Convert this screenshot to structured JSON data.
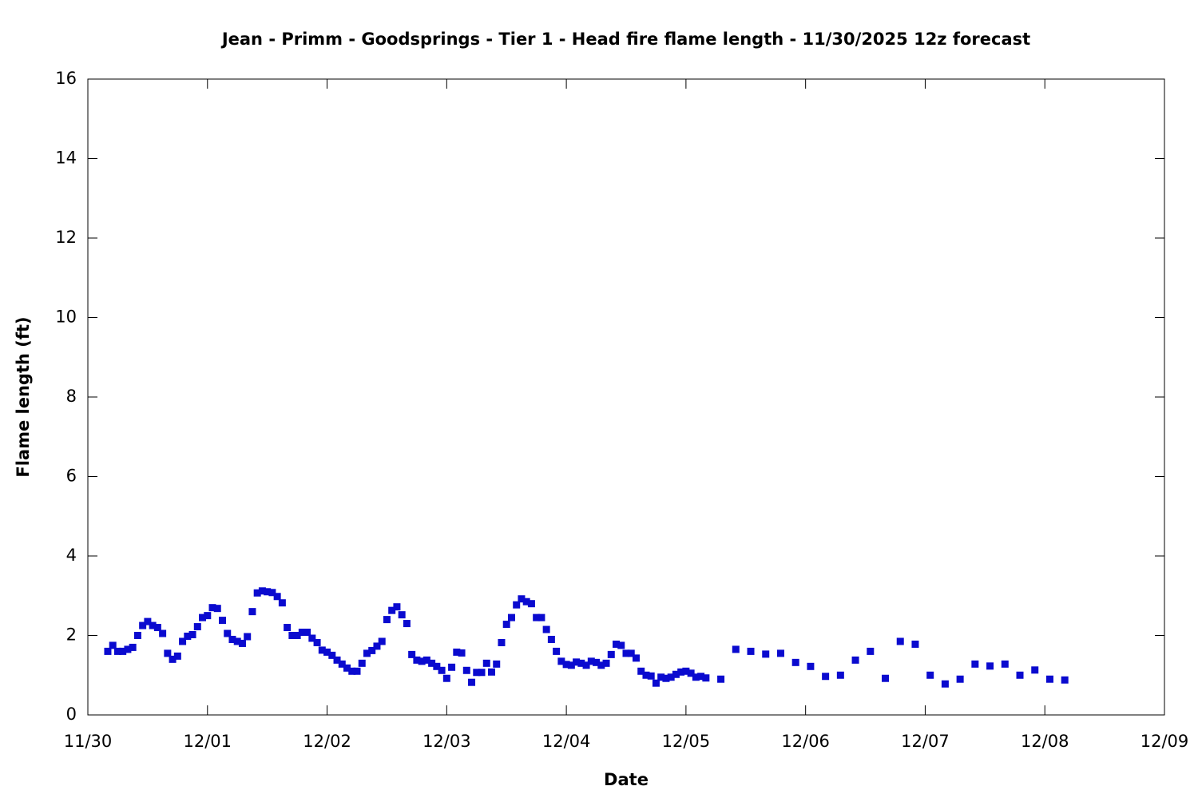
{
  "chart_data": {
    "type": "scatter",
    "title": "Jean - Primm - Goodsprings - Tier 1 - Head fire flame length - 11/30/2025 12z forecast",
    "xlabel": "Date",
    "ylabel": "Flame length (ft)",
    "xlim": [
      0,
      216
    ],
    "ylim": [
      0,
      16
    ],
    "xticks": [
      {
        "value": 0,
        "label": "11/30"
      },
      {
        "value": 24,
        "label": "12/01"
      },
      {
        "value": 48,
        "label": "12/02"
      },
      {
        "value": 72,
        "label": "12/03"
      },
      {
        "value": 96,
        "label": "12/04"
      },
      {
        "value": 120,
        "label": "12/05"
      },
      {
        "value": 144,
        "label": "12/06"
      },
      {
        "value": 168,
        "label": "12/07"
      },
      {
        "value": 192,
        "label": "12/08"
      },
      {
        "value": 216,
        "label": "12/09"
      }
    ],
    "yticks": [
      0,
      2,
      4,
      6,
      8,
      10,
      12,
      14,
      16
    ],
    "color": "#0a0acf",
    "x": [
      4,
      5,
      6,
      7,
      8,
      9,
      10,
      11,
      12,
      13,
      14,
      15,
      16,
      17,
      18,
      19,
      20,
      21,
      22,
      23,
      24,
      25,
      26,
      27,
      28,
      29,
      30,
      31,
      32,
      33,
      34,
      35,
      36,
      37,
      38,
      39,
      40,
      41,
      42,
      43,
      44,
      45,
      46,
      47,
      48,
      49,
      50,
      51,
      52,
      53,
      54,
      55,
      56,
      57,
      58,
      59,
      60,
      61,
      62,
      63,
      64,
      65,
      66,
      67,
      68,
      69,
      70,
      71,
      72,
      73,
      74,
      75,
      76,
      77,
      78,
      79,
      80,
      81,
      82,
      83,
      84,
      85,
      86,
      87,
      88,
      89,
      90,
      91,
      92,
      93,
      94,
      95,
      96,
      97,
      98,
      99,
      100,
      101,
      102,
      103,
      104,
      105,
      106,
      107,
      108,
      109,
      110,
      111,
      112,
      113,
      114,
      115,
      116,
      117,
      118,
      119,
      120,
      121,
      122,
      123,
      124,
      127,
      130,
      133,
      136,
      139,
      142,
      145,
      148,
      151,
      154,
      157,
      160,
      163,
      166,
      169,
      172,
      175,
      178,
      181,
      184,
      187,
      190,
      193,
      196
    ],
    "values": [
      1.6,
      1.75,
      1.6,
      1.6,
      1.65,
      1.7,
      2.0,
      2.25,
      2.35,
      2.25,
      2.2,
      2.05,
      1.55,
      1.4,
      1.48,
      1.85,
      1.98,
      2.02,
      2.22,
      2.45,
      2.5,
      2.7,
      2.68,
      2.38,
      2.05,
      1.9,
      1.85,
      1.8,
      1.97,
      2.6,
      3.07,
      3.12,
      3.1,
      3.08,
      2.98,
      2.82,
      2.2,
      2.0,
      2.0,
      2.08,
      2.08,
      1.93,
      1.82,
      1.63,
      1.58,
      1.5,
      1.38,
      1.28,
      1.18,
      1.1,
      1.1,
      1.3,
      1.55,
      1.62,
      1.73,
      1.85,
      2.4,
      2.63,
      2.72,
      2.52,
      2.3,
      1.52,
      1.38,
      1.35,
      1.38,
      1.3,
      1.22,
      1.12,
      0.92,
      1.2,
      1.58,
      1.56,
      1.12,
      0.82,
      1.07,
      1.07,
      1.3,
      1.08,
      1.28,
      1.82,
      2.28,
      2.45,
      2.77,
      2.92,
      2.85,
      2.8,
      2.45,
      2.45,
      2.15,
      1.9,
      1.6,
      1.35,
      1.27,
      1.25,
      1.33,
      1.3,
      1.25,
      1.35,
      1.32,
      1.25,
      1.3,
      1.52,
      1.78,
      1.75,
      1.55,
      1.55,
      1.43,
      1.1,
      1.0,
      0.98,
      0.8,
      0.95,
      0.92,
      0.95,
      1.02,
      1.08,
      1.1,
      1.05,
      0.95,
      0.97,
      0.93,
      0.9,
      1.65,
      1.6,
      1.53,
      1.55,
      1.32,
      1.22,
      0.97,
      1.0,
      1.38,
      1.6,
      0.92,
      1.85,
      1.78,
      1.0,
      0.78,
      0.9,
      1.28,
      1.23,
      1.28,
      1.0,
      1.13,
      0.9,
      0.88
    ]
  }
}
